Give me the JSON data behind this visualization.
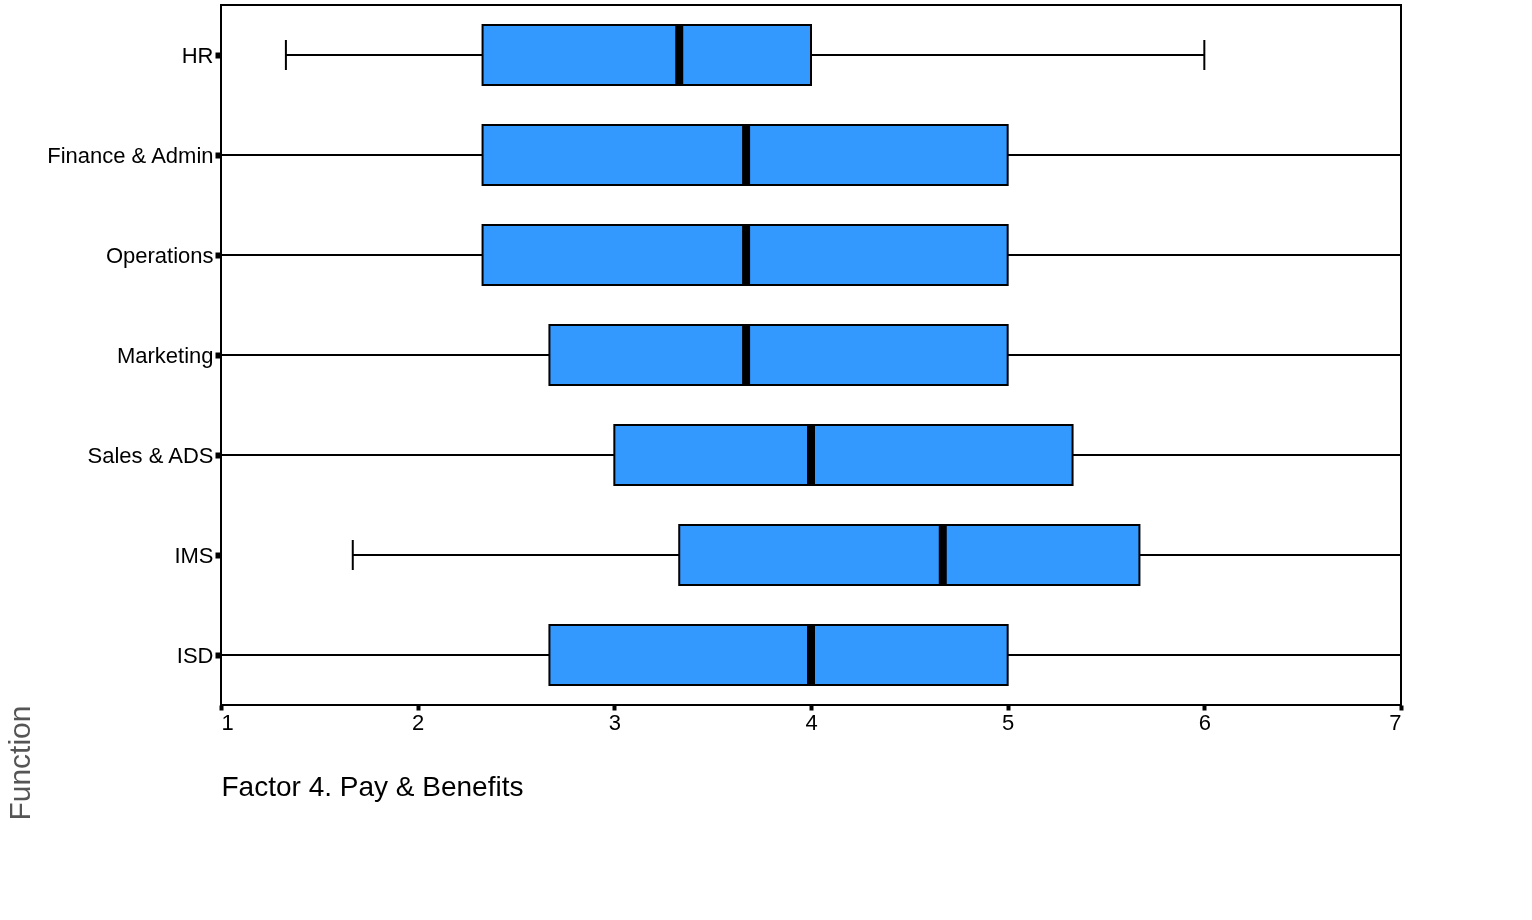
{
  "chart_data": {
    "type": "box",
    "orientation": "horizontal",
    "xlabel": "Factor 4. Pay & Benefits",
    "ylabel": "Function",
    "categories": [
      "HR",
      "Finance & Admin",
      "Operations",
      "Marketing",
      "Sales & ADS",
      "IMS",
      "ISD"
    ],
    "xlim": [
      1,
      7
    ],
    "xticks": [
      1,
      2,
      3,
      4,
      5,
      6,
      7
    ],
    "series": [
      {
        "color": "#3399ff",
        "boxes": [
          {
            "low": 1.33,
            "q1": 2.33,
            "median": 3.33,
            "q3": 4.0,
            "high": 6.0
          },
          {
            "low": 1,
            "q1": 2.33,
            "median": 3.67,
            "q3": 5.0,
            "high": 7
          },
          {
            "low": 1,
            "q1": 2.33,
            "median": 3.67,
            "q3": 5.0,
            "high": 7
          },
          {
            "low": 1,
            "q1": 2.67,
            "median": 3.67,
            "q3": 5.0,
            "high": 7
          },
          {
            "low": 1,
            "q1": 3.0,
            "median": 4.0,
            "q3": 5.33,
            "high": 7
          },
          {
            "low": 1.67,
            "q1": 3.33,
            "median": 4.67,
            "q3": 5.67,
            "high": 7
          },
          {
            "low": 1,
            "q1": 2.67,
            "median": 4.0,
            "q3": 5.0,
            "high": 7
          }
        ]
      }
    ]
  }
}
